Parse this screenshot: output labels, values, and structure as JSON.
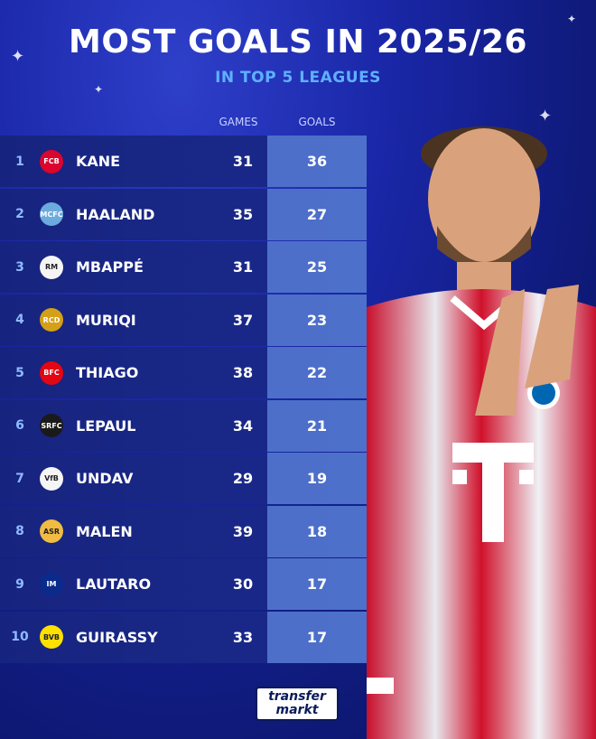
{
  "title": "MOST GOALS IN 2025/26",
  "subtitle": "IN TOP 5 LEAGUES",
  "headers": {
    "games": "GAMES",
    "goals": "GOALS"
  },
  "rows": [
    {
      "rank": "1",
      "name": "KANE",
      "games": "31",
      "goals": "36",
      "club": "bayern-badge",
      "badge_bg": "#dc052d",
      "badge_text": "FCB"
    },
    {
      "rank": "2",
      "name": "HAALAND",
      "games": "35",
      "goals": "27",
      "club": "man-city-badge",
      "badge_bg": "#6cabdd",
      "badge_text": "MCFC"
    },
    {
      "rank": "3",
      "name": "MBAPPÉ",
      "games": "31",
      "goals": "25",
      "club": "real-madrid-badge",
      "badge_bg": "#f5f5f5",
      "badge_text": "RM"
    },
    {
      "rank": "4",
      "name": "MURIQI",
      "games": "37",
      "goals": "23",
      "club": "mallorca-badge",
      "badge_bg": "#d4a017",
      "badge_text": "RCD"
    },
    {
      "rank": "5",
      "name": "THIAGO",
      "games": "38",
      "goals": "22",
      "club": "brentford-badge",
      "badge_bg": "#e30613",
      "badge_text": "BFC"
    },
    {
      "rank": "6",
      "name": "LEPAUL",
      "games": "34",
      "goals": "21",
      "club": "rennes-badge",
      "badge_bg": "#1a1a1a",
      "badge_text": "SRFC"
    },
    {
      "rank": "7",
      "name": "UNDAV",
      "games": "29",
      "goals": "19",
      "club": "stuttgart-badge",
      "badge_bg": "#f5f5f5",
      "badge_text": "VfB"
    },
    {
      "rank": "8",
      "name": "MALEN",
      "games": "39",
      "goals": "18",
      "club": "roma-badge",
      "badge_bg": "#f0bc42",
      "badge_text": "ASR"
    },
    {
      "rank": "9",
      "name": "LAUTARO",
      "games": "30",
      "goals": "17",
      "club": "inter-badge",
      "badge_bg": "#0a2a8c",
      "badge_text": "IM"
    },
    {
      "rank": "10",
      "name": "GUIRASSY",
      "games": "33",
      "goals": "17",
      "club": "dortmund-badge",
      "badge_bg": "#fde100",
      "badge_text": "BVB"
    }
  ],
  "logo": {
    "line1": "transfer",
    "line2": "markt"
  },
  "colors": {
    "goals_column": "#6fa0f0",
    "rank_text": "#8fbaff",
    "subtitle": "#5fb0ff"
  }
}
